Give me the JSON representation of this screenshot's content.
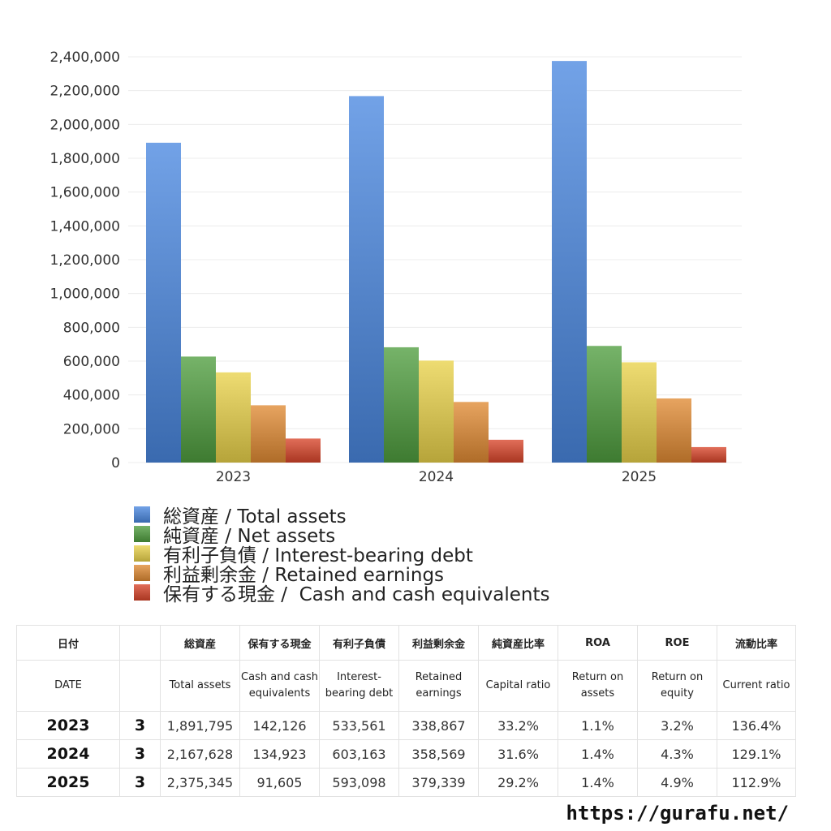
{
  "chart_data": {
    "type": "bar",
    "categories": [
      "2023",
      "2024",
      "2025"
    ],
    "series": [
      {
        "name": "総資産 / Total assets",
        "values": [
          1891795,
          2167628,
          2375345
        ],
        "color": "#4a88e0"
      },
      {
        "name": "純資産 / Net assets",
        "values": [
          627000,
          682000,
          690000
        ],
        "color": "#4f9e3f"
      },
      {
        "name": "有利子負債 / Interest-bearing debt",
        "values": [
          533561,
          603163,
          593098
        ],
        "color": "#e9d24a"
      },
      {
        "name": "利益剰余金 / Retained earnings",
        "values": [
          338867,
          358569,
          379339
        ],
        "color": "#e08a33"
      },
      {
        "name": "保有する現金 /  Cash and cash equivalents",
        "values": [
          142126,
          134923,
          91605
        ],
        "color": "#d9452a"
      }
    ],
    "ylim": [
      0,
      2400000
    ],
    "yticks": [
      "0",
      "200,000",
      "400,000",
      "600,000",
      "800,000",
      "1,000,000",
      "1,200,000",
      "1,400,000",
      "1,600,000",
      "1,800,000",
      "2,000,000",
      "2,200,000",
      "2,400,000"
    ],
    "grid": true,
    "legend_position": "bottom-left"
  },
  "table": {
    "headers_jp": [
      "日付",
      "",
      "総資産",
      "保有する現金",
      "有利子負債",
      "利益剰余金",
      "純資産比率",
      "ROA",
      "ROE",
      "流動比率"
    ],
    "headers_en": [
      "DATE",
      "",
      "Total assets",
      "Cash and cash equivalents",
      "Interest-bearing debt",
      "Retained earnings",
      "Capital ratio",
      "Return on assets",
      "Return on equity",
      "Current ratio"
    ],
    "rows": [
      [
        "2023",
        "3",
        "1,891,795",
        "142,126",
        "533,561",
        "338,867",
        "33.2%",
        "1.1%",
        "3.2%",
        "136.4%"
      ],
      [
        "2024",
        "3",
        "2,167,628",
        "134,923",
        "603,163",
        "358,569",
        "31.6%",
        "1.4%",
        "4.3%",
        "129.1%"
      ],
      [
        "2025",
        "3",
        "2,375,345",
        "91,605",
        "593,098",
        "379,339",
        "29.2%",
        "1.4%",
        "4.9%",
        "112.9%"
      ]
    ]
  },
  "source_url": "https://gurafu.net/"
}
